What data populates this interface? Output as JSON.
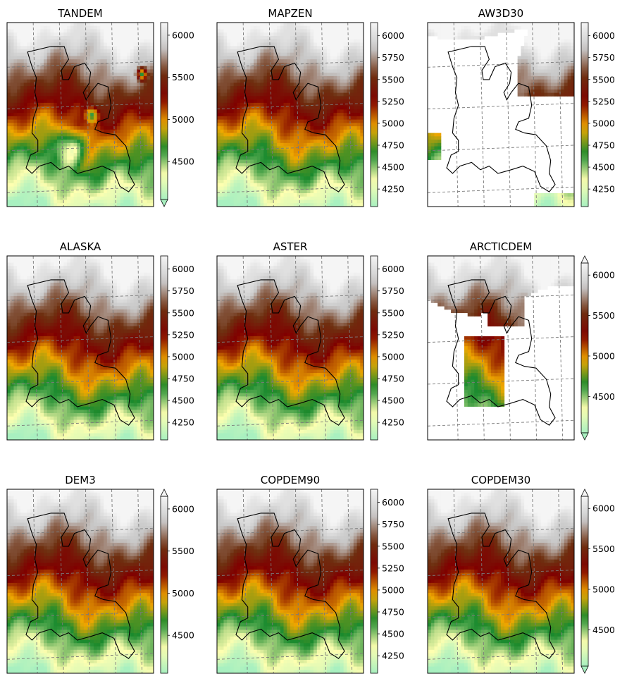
{
  "chart_data": [
    {
      "type": "heatmap",
      "title": "TANDEM",
      "colorbar_ticks": [
        4500,
        5000,
        5500,
        6000
      ],
      "extend": "min",
      "variant": "tandem"
    },
    {
      "type": "heatmap",
      "title": "MAPZEN",
      "colorbar_ticks": [
        4250,
        4500,
        4750,
        5000,
        5250,
        5500,
        5750,
        6000
      ],
      "extend": "none",
      "variant": "smooth"
    },
    {
      "type": "heatmap",
      "title": "AW3D30",
      "colorbar_ticks": [
        4250,
        4500,
        4750,
        5000,
        5250,
        5500,
        5750,
        6000
      ],
      "extend": "none",
      "variant": "aw3d30"
    },
    {
      "type": "heatmap",
      "title": "ALASKA",
      "colorbar_ticks": [
        4250,
        4500,
        4750,
        5000,
        5250,
        5500,
        5750,
        6000
      ],
      "extend": "none",
      "variant": "smooth"
    },
    {
      "type": "heatmap",
      "title": "ASTER",
      "colorbar_ticks": [
        4250,
        4500,
        4750,
        5000,
        5250,
        5500,
        5750,
        6000
      ],
      "extend": "none",
      "variant": "smooth"
    },
    {
      "type": "heatmap",
      "title": "ARCTICDEM",
      "colorbar_ticks": [
        4500,
        5000,
        5500,
        6000
      ],
      "extend": "both",
      "variant": "arcticdem"
    },
    {
      "type": "heatmap",
      "title": "DEM3",
      "colorbar_ticks": [
        4500,
        5000,
        5500,
        6000
      ],
      "extend": "max",
      "variant": "smooth"
    },
    {
      "type": "heatmap",
      "title": "COPDEM90",
      "colorbar_ticks": [
        4250,
        4500,
        4750,
        5000,
        5250,
        5500,
        5750,
        6000
      ],
      "extend": "none",
      "variant": "smooth"
    },
    {
      "type": "heatmap",
      "title": "COPDEM30",
      "colorbar_ticks": [
        4500,
        5000,
        5500,
        6000
      ],
      "extend": "both",
      "variant": "smooth"
    }
  ],
  "colormap": [
    "#a8f0c0",
    "#ffffb0",
    "#1a8a2e",
    "#f0a800",
    "#800000",
    "#6e3010",
    "#c8c8c8",
    "#f5f5f5"
  ],
  "value_range": [
    4050,
    6150
  ]
}
